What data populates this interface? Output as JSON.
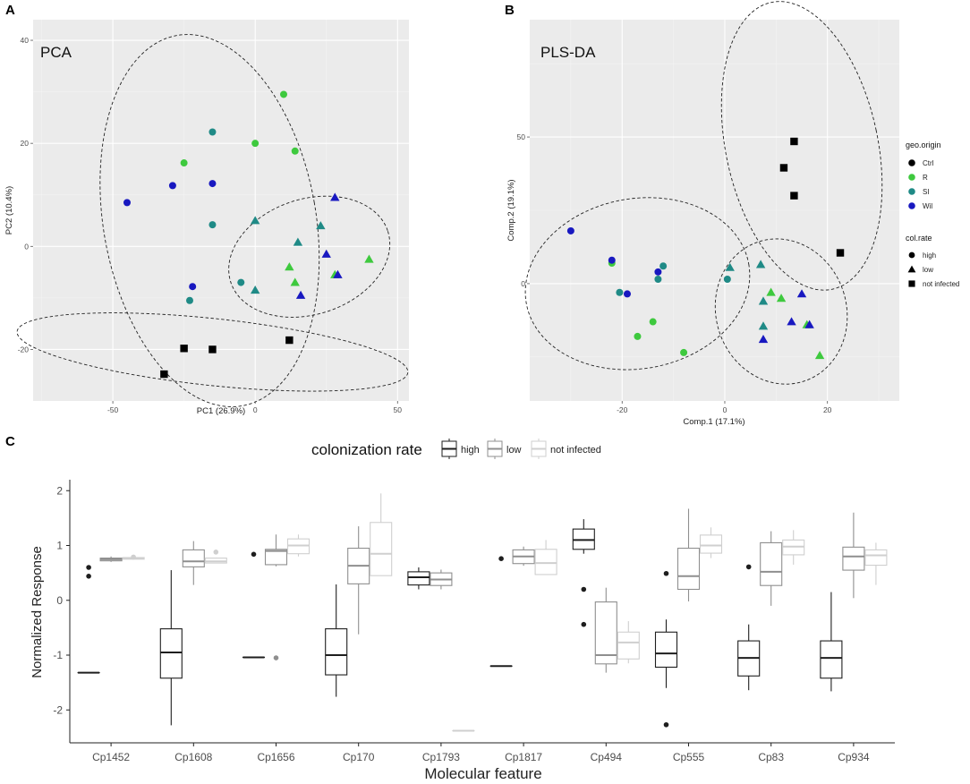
{
  "colors": {
    "panel_bg": "#ebebeb",
    "grid_major": "#ffffff",
    "grid_minor": "#f4f4f4",
    "Ctrl": "#000000",
    "R": "#3ec93e",
    "SI": "#1f8a86",
    "Wil": "#1818c0",
    "high": "#1e1e1e",
    "low": "#8f8f8f",
    "not infected": "#cfcfcf"
  },
  "panel_labels": {
    "a": "A",
    "b": "B",
    "c": "C"
  },
  "legend": {
    "geo_title": "geo.origin",
    "geo_items": [
      "Ctrl",
      "R",
      "SI",
      "Wil"
    ],
    "col_title": "col.rate",
    "col_items": [
      "high",
      "low",
      "not infected"
    ],
    "rate_title": "colonization rate",
    "rate_items": [
      "high",
      "low",
      "not infected"
    ]
  },
  "chart_data": [
    {
      "type": "scatter",
      "title": "PCA",
      "xlabel": "PC1 (26.9%)",
      "ylabel": "PC2 (10.4%)",
      "xlim": [
        -78,
        54
      ],
      "ylim": [
        -30,
        44
      ],
      "xticks": [
        -50,
        0,
        50
      ],
      "yticks": [
        -20,
        0,
        20,
        40
      ],
      "grid": true,
      "points": [
        {
          "x": 10,
          "y": 29.5,
          "geo": "R",
          "rate": "high"
        },
        {
          "x": 0,
          "y": 20,
          "geo": "R",
          "rate": "high"
        },
        {
          "x": 14,
          "y": 18.5,
          "geo": "R",
          "rate": "high"
        },
        {
          "x": -25,
          "y": 16.2,
          "geo": "R",
          "rate": "high"
        },
        {
          "x": -15,
          "y": 22.2,
          "geo": "SI",
          "rate": "high"
        },
        {
          "x": -15,
          "y": 4.2,
          "geo": "SI",
          "rate": "high"
        },
        {
          "x": -23,
          "y": -10.5,
          "geo": "SI",
          "rate": "high"
        },
        {
          "x": -5,
          "y": -7,
          "geo": "SI",
          "rate": "high"
        },
        {
          "x": -15,
          "y": 12.2,
          "geo": "Wil",
          "rate": "high"
        },
        {
          "x": -29,
          "y": 11.8,
          "geo": "Wil",
          "rate": "high"
        },
        {
          "x": -45,
          "y": 8.5,
          "geo": "Wil",
          "rate": "high"
        },
        {
          "x": -22,
          "y": -7.8,
          "geo": "Wil",
          "rate": "high"
        },
        {
          "x": 12,
          "y": -4,
          "geo": "R",
          "rate": "low"
        },
        {
          "x": 14,
          "y": -7,
          "geo": "R",
          "rate": "low"
        },
        {
          "x": 28,
          "y": -5.5,
          "geo": "R",
          "rate": "low"
        },
        {
          "x": 40,
          "y": -2.5,
          "geo": "R",
          "rate": "low"
        },
        {
          "x": 0,
          "y": 5,
          "geo": "SI",
          "rate": "low"
        },
        {
          "x": 0,
          "y": -8.5,
          "geo": "SI",
          "rate": "low"
        },
        {
          "x": 15,
          "y": 0.8,
          "geo": "SI",
          "rate": "low"
        },
        {
          "x": 23,
          "y": 4,
          "geo": "SI",
          "rate": "low"
        },
        {
          "x": 28,
          "y": 9.5,
          "geo": "Wil",
          "rate": "low"
        },
        {
          "x": 25,
          "y": -1.5,
          "geo": "Wil",
          "rate": "low"
        },
        {
          "x": 29,
          "y": -5.5,
          "geo": "Wil",
          "rate": "low"
        },
        {
          "x": 16,
          "y": -9.5,
          "geo": "Wil",
          "rate": "low"
        },
        {
          "x": -25,
          "y": -19.8,
          "geo": "Ctrl",
          "rate": "not infected"
        },
        {
          "x": -15,
          "y": -20,
          "geo": "Ctrl",
          "rate": "not infected"
        },
        {
          "x": -32,
          "y": -24.8,
          "geo": "Ctrl",
          "rate": "not infected"
        },
        {
          "x": 12,
          "y": -18.2,
          "geo": "Ctrl",
          "rate": "not infected"
        }
      ],
      "ellipses": [
        {
          "group": "high",
          "cx": -16,
          "cy": 5,
          "rx": 37.3,
          "ry": 36.5,
          "angle_deg": -10
        },
        {
          "group": "low",
          "cx": 19,
          "cy": -2,
          "rx": 29,
          "ry": 11.2,
          "angle_deg": -18
        },
        {
          "group": "not infected",
          "cx": -15,
          "cy": -20.5,
          "rx": 69,
          "ry": 6.5,
          "angle_deg": 6
        }
      ]
    },
    {
      "type": "scatter",
      "title": "PLS-DA",
      "xlabel": "Comp.1 (17.1%)",
      "ylabel": "Comp.2 (19.1%)",
      "xlim": [
        -38,
        34
      ],
      "ylim": [
        -40,
        90
      ],
      "xticks": [
        -20,
        0,
        20
      ],
      "yticks": [
        0,
        50
      ],
      "grid": true,
      "points": [
        {
          "x": -22,
          "y": 7,
          "geo": "R",
          "rate": "high"
        },
        {
          "x": -14,
          "y": -13,
          "geo": "R",
          "rate": "high"
        },
        {
          "x": -17,
          "y": -18,
          "geo": "R",
          "rate": "high"
        },
        {
          "x": -8,
          "y": -23.5,
          "geo": "R",
          "rate": "high"
        },
        {
          "x": -20.5,
          "y": -3,
          "geo": "SI",
          "rate": "high"
        },
        {
          "x": -13,
          "y": 1.5,
          "geo": "SI",
          "rate": "high"
        },
        {
          "x": -12,
          "y": 6,
          "geo": "SI",
          "rate": "high"
        },
        {
          "x": -30,
          "y": 18,
          "geo": "Wil",
          "rate": "high"
        },
        {
          "x": -22,
          "y": 8,
          "geo": "Wil",
          "rate": "high"
        },
        {
          "x": -19,
          "y": -3.5,
          "geo": "Wil",
          "rate": "high"
        },
        {
          "x": -13,
          "y": 4,
          "geo": "Wil",
          "rate": "high"
        },
        {
          "x": 0.5,
          "y": 1.5,
          "geo": "SI",
          "rate": "high"
        },
        {
          "x": 9,
          "y": -3,
          "geo": "R",
          "rate": "low"
        },
        {
          "x": 11,
          "y": -5,
          "geo": "R",
          "rate": "low"
        },
        {
          "x": 16,
          "y": -14,
          "geo": "R",
          "rate": "low"
        },
        {
          "x": 18.5,
          "y": -24.5,
          "geo": "R",
          "rate": "low"
        },
        {
          "x": 1,
          "y": 5.5,
          "geo": "SI",
          "rate": "low"
        },
        {
          "x": 7,
          "y": 6.5,
          "geo": "SI",
          "rate": "low"
        },
        {
          "x": 7.5,
          "y": -6,
          "geo": "SI",
          "rate": "low"
        },
        {
          "x": 7.5,
          "y": -14.5,
          "geo": "SI",
          "rate": "low"
        },
        {
          "x": 15,
          "y": -3.5,
          "geo": "Wil",
          "rate": "low"
        },
        {
          "x": 13,
          "y": -13,
          "geo": "Wil",
          "rate": "low"
        },
        {
          "x": 16.5,
          "y": -14,
          "geo": "Wil",
          "rate": "low"
        },
        {
          "x": 7.5,
          "y": -19,
          "geo": "Wil",
          "rate": "low"
        },
        {
          "x": 13.5,
          "y": 48.5,
          "geo": "Ctrl",
          "rate": "not infected"
        },
        {
          "x": 11.5,
          "y": 39.5,
          "geo": "Ctrl",
          "rate": "not infected"
        },
        {
          "x": 13.5,
          "y": 30,
          "geo": "Ctrl",
          "rate": "not infected"
        },
        {
          "x": 22.5,
          "y": 10.5,
          "geo": "Ctrl",
          "rate": "not infected"
        }
      ],
      "ellipses": [
        {
          "group": "high",
          "cx": -17,
          "cy": 0,
          "rx": 22,
          "ry": 29,
          "angle_deg": -10
        },
        {
          "group": "low",
          "cx": 11,
          "cy": -9.5,
          "rx": 12.7,
          "ry": 25,
          "angle_deg": -18
        },
        {
          "group": "not infected",
          "cx": 15,
          "cy": 47,
          "rx": 14.8,
          "ry": 50,
          "angle_deg": -12
        }
      ]
    },
    {
      "type": "box",
      "xlabel": "Molecular feature",
      "ylabel": "Normalized Response",
      "ylim": [
        -2.6,
        2.2
      ],
      "yticks": [
        -2,
        -1,
        0,
        1,
        2
      ],
      "legend_title": "colonization rate",
      "categories": [
        "Cp1452",
        "Cp1608",
        "Cp1656",
        "Cp170",
        "Cp1793",
        "Cp1817",
        "Cp494",
        "Cp555",
        "Cp83",
        "Cp934"
      ],
      "series": [
        {
          "name": "high",
          "boxes": [
            {
              "min": -1.32,
              "q1": -1.32,
              "median": -1.32,
              "q3": -1.32,
              "max": -1.32,
              "outliers": [
                0.6,
                0.44
              ]
            },
            {
              "min": -2.28,
              "q1": -1.42,
              "median": -0.95,
              "q3": -0.52,
              "max": 0.55,
              "outliers": []
            },
            {
              "min": -1.04,
              "q1": -1.04,
              "median": -1.04,
              "q3": -1.04,
              "max": -1.04,
              "outliers": [
                0.84
              ]
            },
            {
              "min": -1.76,
              "q1": -1.36,
              "median": -1.0,
              "q3": -0.52,
              "max": 0.29,
              "outliers": []
            },
            {
              "min": 0.2,
              "q1": 0.28,
              "median": 0.42,
              "q3": 0.52,
              "max": 0.6,
              "outliers": []
            },
            {
              "min": -1.2,
              "q1": -1.2,
              "median": -1.2,
              "q3": -1.2,
              "max": -1.2,
              "outliers": [
                0.76
              ]
            },
            {
              "min": 0.85,
              "q1": 0.93,
              "median": 1.1,
              "q3": 1.3,
              "max": 1.48,
              "outliers": [
                0.2,
                -0.44
              ]
            },
            {
              "min": -1.6,
              "q1": -1.22,
              "median": -0.97,
              "q3": -0.58,
              "max": -0.35,
              "outliers": [
                0.49,
                -2.27
              ]
            },
            {
              "min": -1.64,
              "q1": -1.38,
              "median": -1.05,
              "q3": -0.74,
              "max": -0.44,
              "outliers": [
                0.61
              ]
            },
            {
              "min": -1.66,
              "q1": -1.42,
              "median": -1.05,
              "q3": -0.74,
              "max": 0.15,
              "outliers": []
            }
          ]
        },
        {
          "name": "low",
          "boxes": [
            {
              "min": 0.7,
              "q1": 0.72,
              "median": 0.75,
              "q3": 0.77,
              "max": 0.8,
              "outliers": []
            },
            {
              "min": 0.28,
              "q1": 0.61,
              "median": 0.71,
              "q3": 0.92,
              "max": 1.08,
              "outliers": []
            },
            {
              "min": 0.62,
              "q1": 0.65,
              "median": 0.9,
              "q3": 0.93,
              "max": 1.2,
              "outliers": [
                -1.05
              ]
            },
            {
              "min": -0.62,
              "q1": 0.3,
              "median": 0.63,
              "q3": 0.95,
              "max": 1.35,
              "outliers": []
            },
            {
              "min": 0.2,
              "q1": 0.27,
              "median": 0.38,
              "q3": 0.5,
              "max": 0.56,
              "outliers": []
            },
            {
              "min": 0.63,
              "q1": 0.67,
              "median": 0.8,
              "q3": 0.92,
              "max": 0.98,
              "outliers": []
            },
            {
              "min": -1.32,
              "q1": -1.16,
              "median": -1.0,
              "q3": -0.03,
              "max": 0.23,
              "outliers": []
            },
            {
              "min": -0.02,
              "q1": 0.2,
              "median": 0.44,
              "q3": 0.95,
              "max": 1.67,
              "outliers": []
            },
            {
              "min": -0.1,
              "q1": 0.27,
              "median": 0.52,
              "q3": 1.05,
              "max": 1.26,
              "outliers": []
            },
            {
              "min": 0.04,
              "q1": 0.55,
              "median": 0.8,
              "q3": 0.97,
              "max": 1.6,
              "outliers": []
            }
          ]
        },
        {
          "name": "not infected",
          "boxes": [
            {
              "min": 0.74,
              "q1": 0.75,
              "median": 0.77,
              "q3": 0.78,
              "max": 0.79,
              "outliers": [
                0.79
              ]
            },
            {
              "min": 0.68,
              "q1": 0.68,
              "median": 0.71,
              "q3": 0.77,
              "max": 0.78,
              "outliers": [
                0.88
              ]
            },
            {
              "min": 0.8,
              "q1": 0.85,
              "median": 1.0,
              "q3": 1.12,
              "max": 1.2,
              "outliers": []
            },
            {
              "min": 0.45,
              "q1": 0.45,
              "median": 0.85,
              "q3": 1.42,
              "max": 1.95,
              "outliers": []
            },
            {
              "min": -2.38,
              "q1": -2.38,
              "median": -2.38,
              "q3": -2.38,
              "max": -2.38,
              "outliers": []
            },
            {
              "min": 0.47,
              "q1": 0.47,
              "median": 0.68,
              "q3": 0.93,
              "max": 1.1,
              "outliers": []
            },
            {
              "min": -1.15,
              "q1": -1.07,
              "median": -0.77,
              "q3": -0.58,
              "max": -0.38,
              "outliers": []
            },
            {
              "min": 0.77,
              "q1": 0.86,
              "median": 1.0,
              "q3": 1.19,
              "max": 1.33,
              "outliers": []
            },
            {
              "min": 0.65,
              "q1": 0.83,
              "median": 0.98,
              "q3": 1.1,
              "max": 1.28,
              "outliers": []
            },
            {
              "min": 0.28,
              "q1": 0.64,
              "median": 0.82,
              "q3": 0.92,
              "max": 1.05,
              "outliers": []
            }
          ]
        }
      ]
    }
  ]
}
